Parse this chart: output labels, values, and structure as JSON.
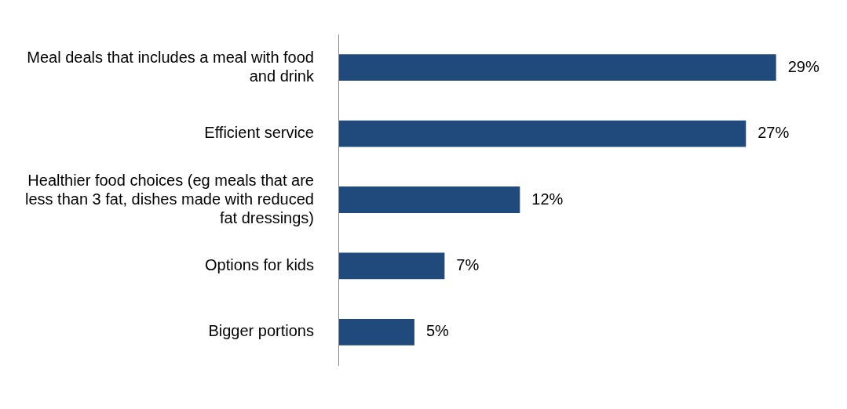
{
  "chart_data": {
    "type": "bar",
    "orientation": "horizontal",
    "categories": [
      "Meal deals that includes a meal with food and drink",
      "Efficient service",
      "Healthier food choices (eg meals that are less than 3 fat, dishes made with reduced fat dressings)",
      "Options for kids",
      "Bigger portions"
    ],
    "values": [
      29,
      27,
      12,
      7,
      5
    ],
    "color": "#214a7c",
    "value_labels": [
      "29%",
      "27%",
      "12%",
      "7%",
      "5%"
    ],
    "legend": false
  }
}
